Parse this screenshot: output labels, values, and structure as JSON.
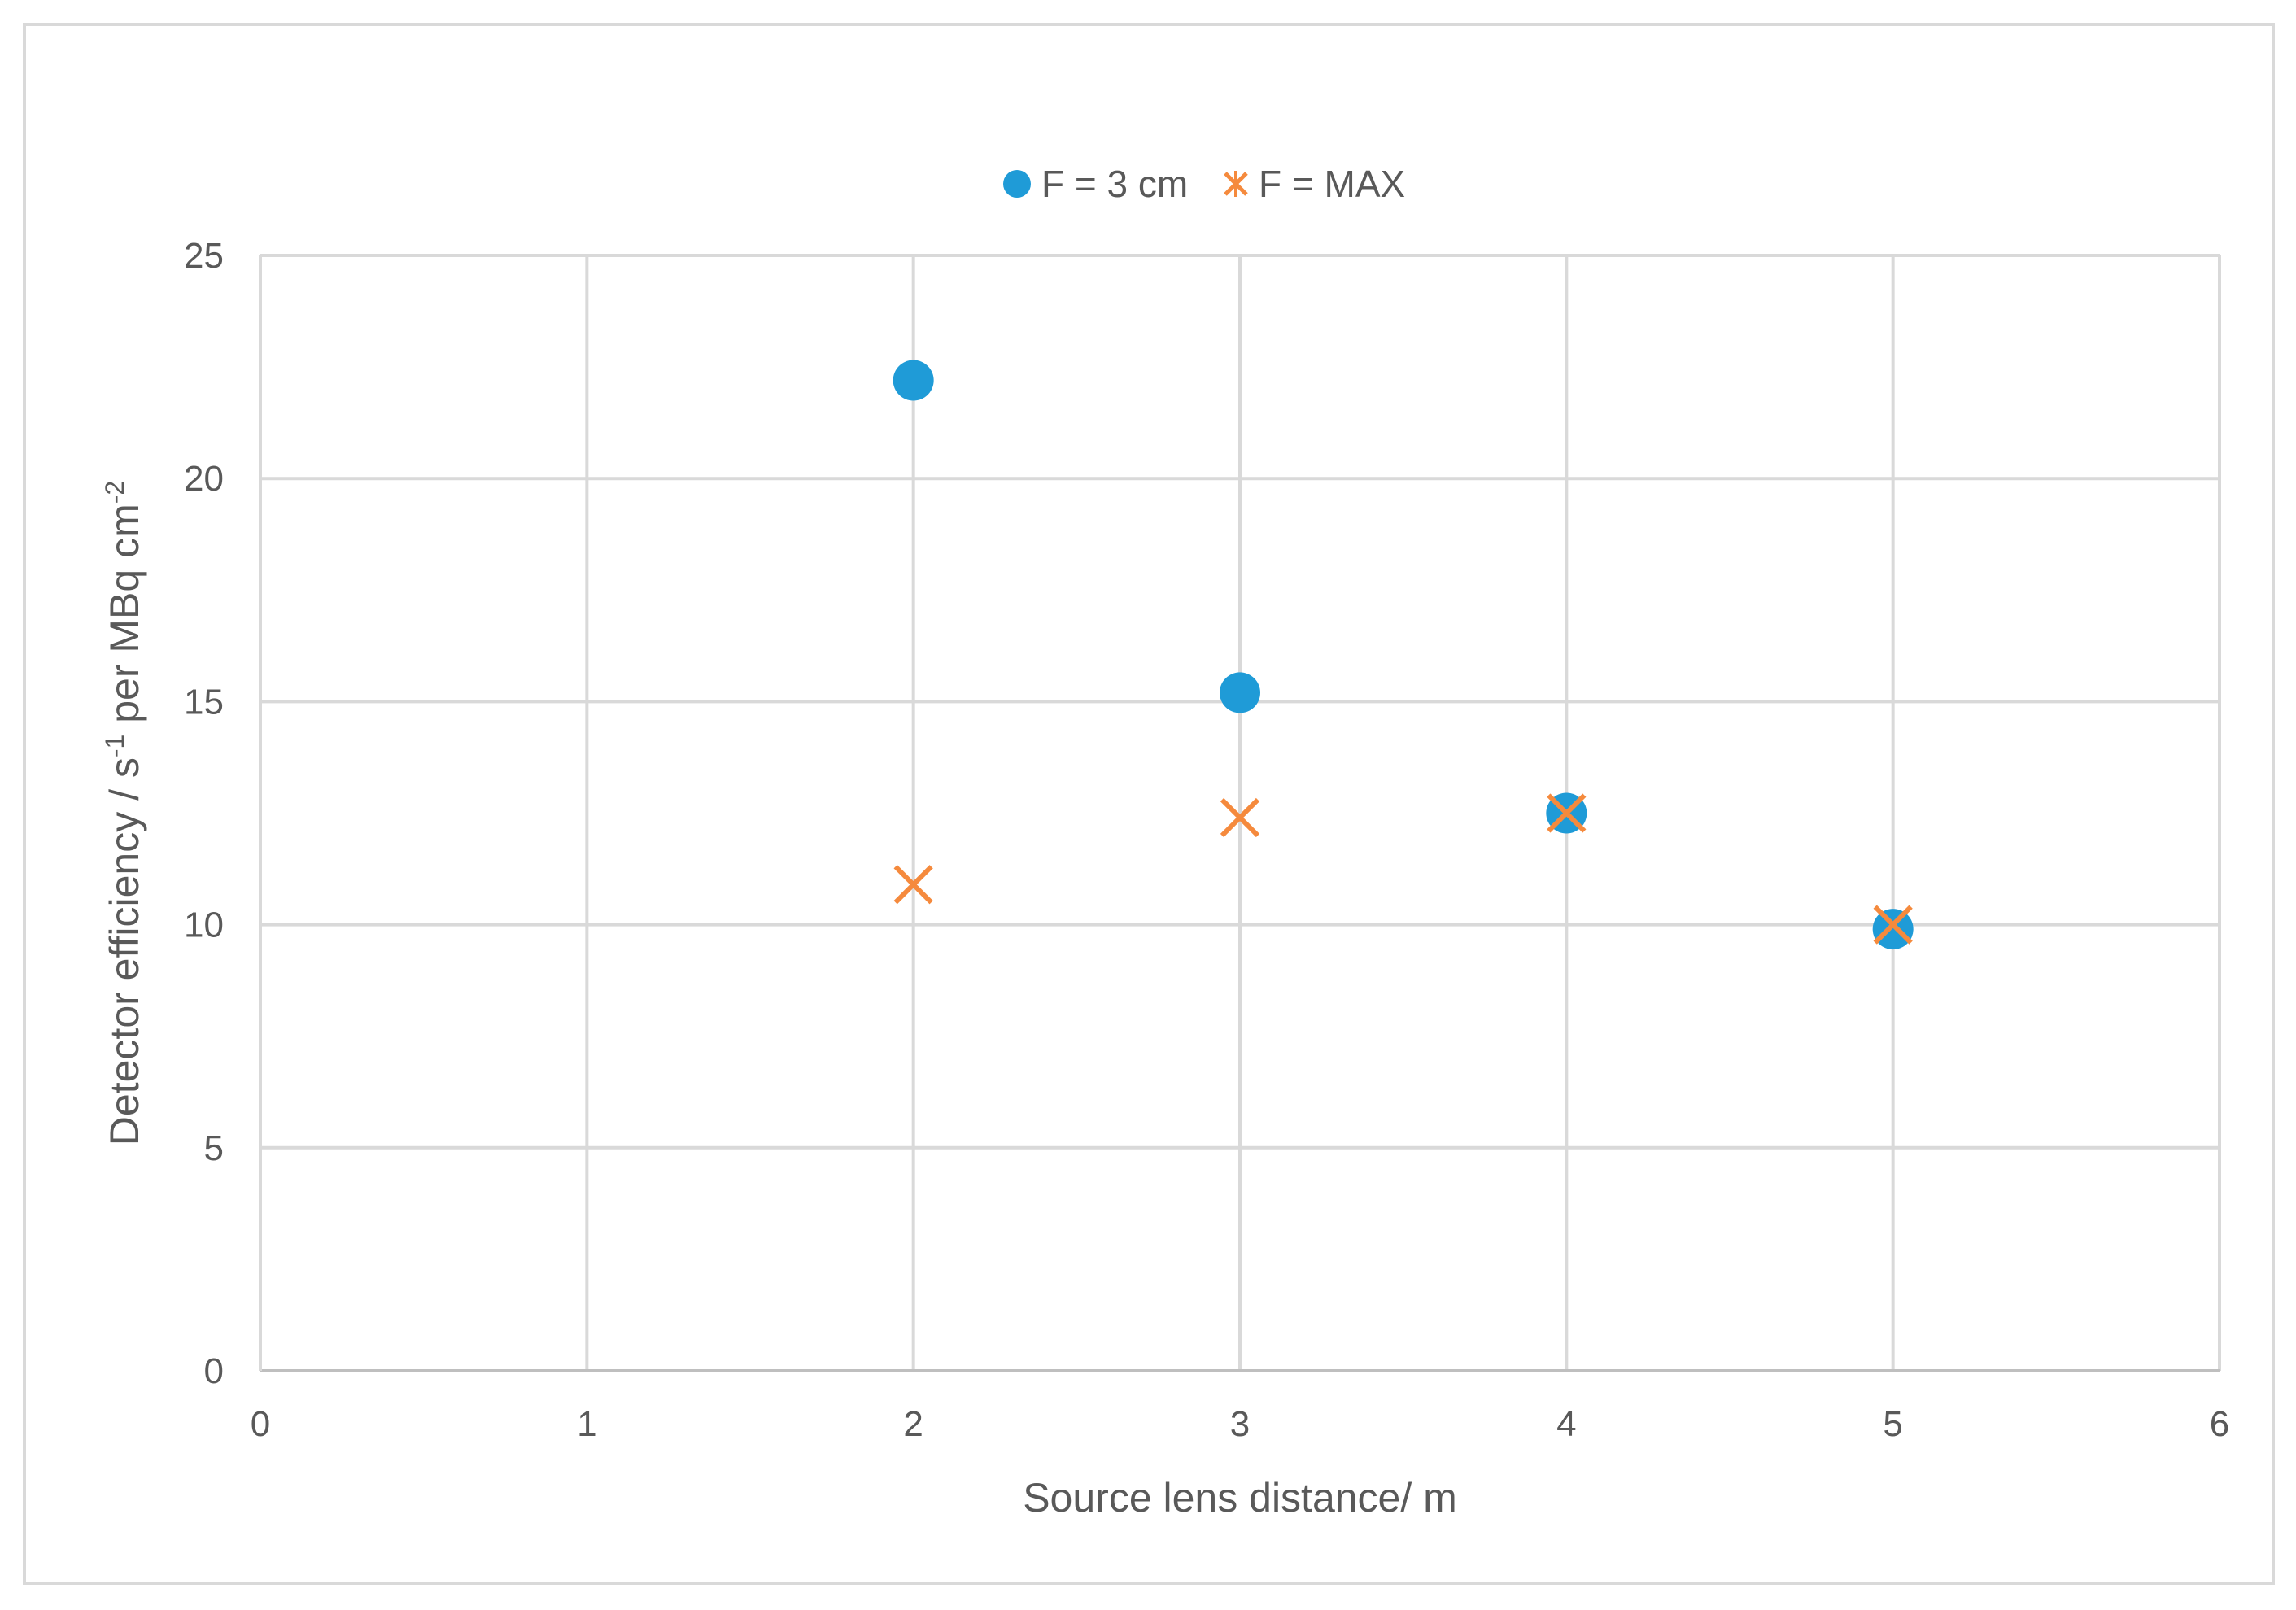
{
  "chart_data": {
    "type": "scatter",
    "title": "",
    "xlabel": "Source lens distance/ m",
    "ylabel_parts": {
      "prefix": "Detector efficiency / s",
      "exp1": "-1",
      "middle": " per MBq cm",
      "exp2": "-2"
    },
    "xlim": [
      0,
      6
    ],
    "ylim": [
      0,
      25
    ],
    "x_ticks": [
      "0",
      "1",
      "2",
      "3",
      "4",
      "5",
      "6"
    ],
    "y_ticks": [
      "0",
      "5",
      "10",
      "15",
      "20",
      "25"
    ],
    "grid": true,
    "legend_position": "top-center",
    "series": [
      {
        "name": "F = 3 cm",
        "marker": "circle",
        "color": "#1f9bd7",
        "points": [
          {
            "x": 2,
            "y": 22.2
          },
          {
            "x": 3,
            "y": 15.2
          },
          {
            "x": 4,
            "y": 12.5
          },
          {
            "x": 5,
            "y": 9.9
          }
        ]
      },
      {
        "name": "F = MAX",
        "marker": "x",
        "color": "#f58a3d",
        "points": [
          {
            "x": 2,
            "y": 10.9
          },
          {
            "x": 3,
            "y": 12.4
          },
          {
            "x": 4,
            "y": 12.5
          },
          {
            "x": 5,
            "y": 10.0
          }
        ]
      }
    ]
  }
}
